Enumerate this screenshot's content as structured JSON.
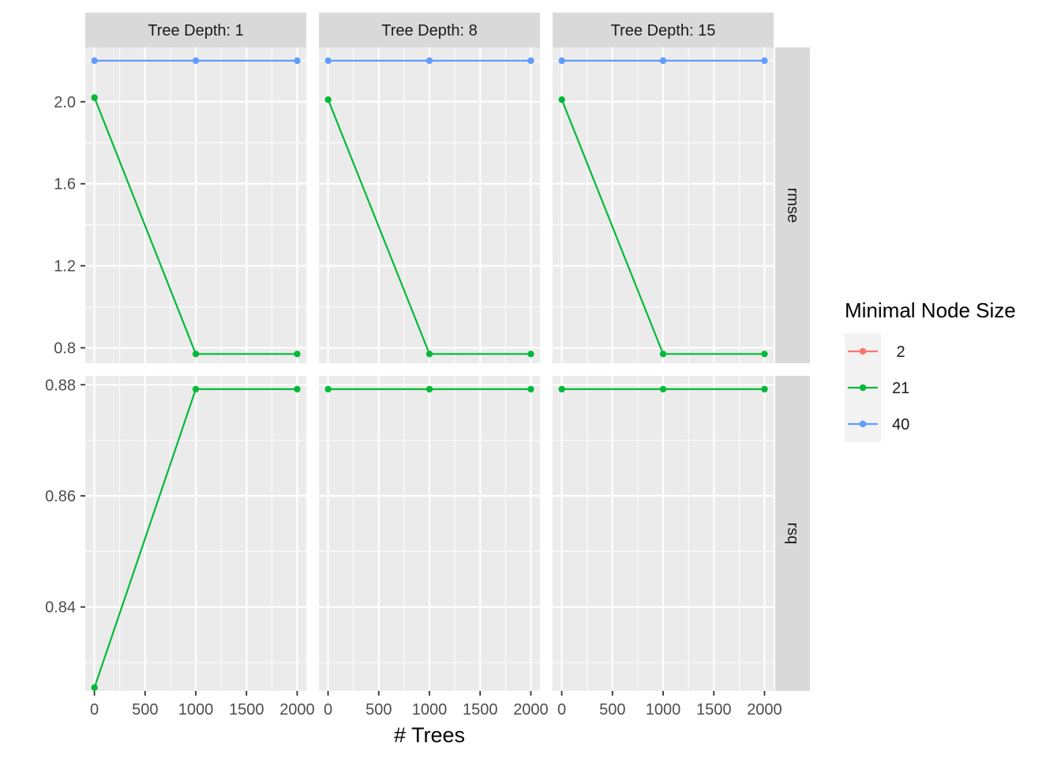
{
  "chart_data": {
    "type": "line",
    "xlabel": "# Trees",
    "ylabel": "",
    "x_ticks": [
      0,
      500,
      1000,
      1500,
      2000
    ],
    "x_tick_labels": [
      "0",
      "500",
      "1000",
      "1500",
      "2000"
    ],
    "xlim": [
      -90,
      2090
    ],
    "facet_columns": [
      "Tree Depth: 1",
      "Tree Depth: 8",
      "Tree Depth: 15"
    ],
    "facet_rows": [
      {
        "label": "rmse",
        "ylim": [
          0.725,
          2.265
        ],
        "ticks": [
          0.8,
          1.2,
          1.6,
          2.0
        ],
        "tick_labels": [
          "0.8",
          "1.2",
          "1.6",
          "2.0"
        ]
      },
      {
        "label": "rsq",
        "ylim": [
          0.8249,
          0.8816
        ],
        "ticks": [
          0.84,
          0.86,
          0.88
        ],
        "tick_labels": [
          "0.84",
          "0.86",
          "0.88"
        ]
      }
    ],
    "legend": {
      "title": "Minimal Node Size",
      "position": "right",
      "entries": [
        {
          "label": " 2",
          "color": "#F8766D"
        },
        {
          "label": "21",
          "color": "#00BA38"
        },
        {
          "label": "40",
          "color": "#619CFF"
        }
      ]
    },
    "panels": [
      {
        "row": "rmse",
        "col": "Tree Depth: 1",
        "series": [
          {
            "legend_label": "40",
            "color": "#619CFF",
            "x": [
              1,
              1000,
              2000
            ],
            "y": [
              2.2,
              2.2,
              2.2
            ]
          },
          {
            "legend_label": "21",
            "color": "#00BA38",
            "x": [
              1,
              1000,
              2000
            ],
            "y": [
              2.02,
              0.77,
              0.77
            ]
          }
        ]
      },
      {
        "row": "rmse",
        "col": "Tree Depth: 8",
        "series": [
          {
            "legend_label": "40",
            "color": "#619CFF",
            "x": [
              1,
              1000,
              2000
            ],
            "y": [
              2.2,
              2.2,
              2.2
            ]
          },
          {
            "legend_label": "21",
            "color": "#00BA38",
            "x": [
              1,
              1000,
              2000
            ],
            "y": [
              2.01,
              0.77,
              0.77
            ]
          }
        ]
      },
      {
        "row": "rmse",
        "col": "Tree Depth: 15",
        "series": [
          {
            "legend_label": "40",
            "color": "#619CFF",
            "x": [
              1,
              1000,
              2000
            ],
            "y": [
              2.2,
              2.2,
              2.2
            ]
          },
          {
            "legend_label": "21",
            "color": "#00BA38",
            "x": [
              1,
              1000,
              2000
            ],
            "y": [
              2.01,
              0.77,
              0.77
            ]
          }
        ]
      },
      {
        "row": "rsq",
        "col": "Tree Depth: 1",
        "series": [
          {
            "legend_label": "21",
            "color": "#00BA38",
            "x": [
              1,
              1000,
              2000
            ],
            "y": [
              0.8255,
              0.8792,
              0.8792
            ]
          }
        ]
      },
      {
        "row": "rsq",
        "col": "Tree Depth: 8",
        "series": [
          {
            "legend_label": "21",
            "color": "#00BA38",
            "x": [
              1,
              1000,
              2000
            ],
            "y": [
              0.8792,
              0.8792,
              0.8792
            ]
          }
        ]
      },
      {
        "row": "rsq",
        "col": "Tree Depth: 15",
        "series": [
          {
            "legend_label": "21",
            "color": "#00BA38",
            "x": [
              1,
              1000,
              2000
            ],
            "y": [
              0.8792,
              0.8792,
              0.8792
            ]
          }
        ]
      }
    ],
    "grid": true,
    "background_color": "#EBEBEB",
    "strip_color": "#D9D9D9"
  }
}
